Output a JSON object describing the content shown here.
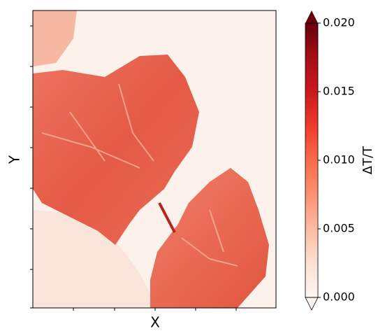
{
  "chart_data": {
    "type": "heatmap",
    "xlabel": "X",
    "ylabel": "Y",
    "colorbar_label": "ΔT/T",
    "clim": [
      0,
      0.02
    ],
    "colorbar_ticks": [
      {
        "value": 0,
        "label": "0.000"
      },
      0.005,
      {
        "value": 0.01,
        "label": "0.010"
      },
      0.015,
      {
        "value": 0.02,
        "label": "0.020"
      }
    ],
    "colormap": [
      "#fff5f0",
      "#fee0d2",
      "#fcbba1",
      "#fc9272",
      "#fb6a4a",
      "#ef3b2c",
      "#cb181d",
      "#a50f15",
      "#67000d"
    ],
    "colorbar_extend": "both"
  }
}
